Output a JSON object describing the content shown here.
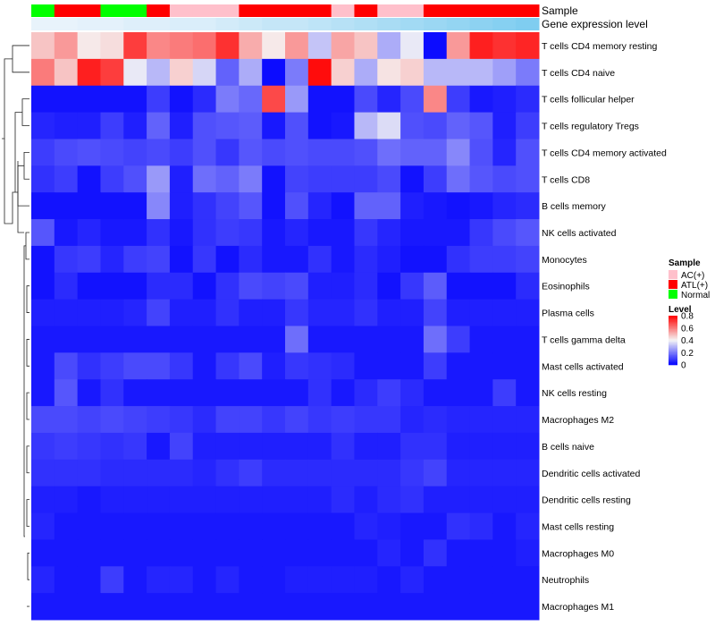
{
  "chart_data": {
    "type": "heatmap",
    "annotation_tracks": [
      {
        "name": "Sample",
        "values": [
          "Normal",
          "ATL(+)",
          "ATL(+)",
          "Normal",
          "Normal",
          "ATL(+)",
          "AC(+)",
          "AC(+)",
          "AC(+)",
          "ATL(+)",
          "ATL(+)",
          "ATL(+)",
          "ATL(+)",
          "AC(+)",
          "ATL(+)",
          "AC(+)",
          "AC(+)",
          "ATL(+)",
          "ATL(+)",
          "ATL(+)",
          "ATL(+)",
          "ATL(+)"
        ]
      },
      {
        "name": "Gene expression level",
        "values": [
          0.05,
          0.05,
          0.08,
          0.08,
          0.12,
          0.12,
          0.15,
          0.15,
          0.2,
          0.25,
          0.3,
          0.3,
          0.35,
          0.4,
          0.45,
          0.5,
          0.55,
          0.6,
          0.65,
          0.7,
          0.75,
          0.8
        ]
      }
    ],
    "row_labels": [
      "T cells CD4 memory resting",
      "T cells CD4 naive",
      "T cells follicular helper",
      "T cells regulatory  Tregs",
      "T cells CD4 memory activated",
      "T cells CD8",
      "B cells memory",
      "NK cells activated",
      "Monocytes",
      "Eosinophils",
      "Plasma cells",
      "T cells gamma delta",
      "Mast cells activated",
      "NK cells resting",
      "Macrophages M2",
      "B cells naive",
      "Dendritic cells activated",
      "Dendritic cells resting",
      "Mast cells resting",
      "Macrophages M0",
      "Neutrophils",
      "Macrophages M1"
    ],
    "values": [
      [
        0.48,
        0.55,
        0.42,
        0.44,
        0.7,
        0.58,
        0.6,
        0.62,
        0.72,
        0.52,
        0.42,
        0.55,
        0.32,
        0.53,
        0.48,
        0.28,
        0.38,
        0.02,
        0.55,
        0.75,
        0.72,
        0.74
      ],
      [
        0.6,
        0.48,
        0.75,
        0.7,
        0.38,
        0.3,
        0.46,
        0.35,
        0.16,
        0.28,
        0.02,
        0.2,
        0.78,
        0.46,
        0.28,
        0.43,
        0.46,
        0.3,
        0.3,
        0.3,
        0.26,
        0.2
      ],
      [
        0.03,
        0.03,
        0.03,
        0.03,
        0.03,
        0.1,
        0.03,
        0.07,
        0.2,
        0.17,
        0.68,
        0.25,
        0.03,
        0.03,
        0.12,
        0.06,
        0.12,
        0.58,
        0.1,
        0.04,
        0.05,
        0.07
      ],
      [
        0.06,
        0.05,
        0.05,
        0.1,
        0.05,
        0.16,
        0.05,
        0.13,
        0.14,
        0.15,
        0.04,
        0.13,
        0.03,
        0.04,
        0.3,
        0.36,
        0.13,
        0.12,
        0.16,
        0.14,
        0.05,
        0.1
      ],
      [
        0.1,
        0.12,
        0.13,
        0.12,
        0.11,
        0.12,
        0.1,
        0.13,
        0.09,
        0.14,
        0.12,
        0.13,
        0.12,
        0.12,
        0.13,
        0.18,
        0.16,
        0.16,
        0.22,
        0.13,
        0.06,
        0.13
      ],
      [
        0.08,
        0.1,
        0.03,
        0.1,
        0.13,
        0.25,
        0.05,
        0.18,
        0.16,
        0.2,
        0.03,
        0.11,
        0.1,
        0.1,
        0.1,
        0.12,
        0.03,
        0.1,
        0.18,
        0.14,
        0.12,
        0.13
      ],
      [
        0.03,
        0.03,
        0.03,
        0.03,
        0.03,
        0.22,
        0.05,
        0.08,
        0.11,
        0.14,
        0.03,
        0.13,
        0.06,
        0.03,
        0.16,
        0.16,
        0.05,
        0.04,
        0.03,
        0.04,
        0.06,
        0.07
      ],
      [
        0.14,
        0.04,
        0.06,
        0.04,
        0.04,
        0.08,
        0.04,
        0.08,
        0.1,
        0.09,
        0.04,
        0.06,
        0.04,
        0.04,
        0.09,
        0.06,
        0.04,
        0.04,
        0.04,
        0.09,
        0.12,
        0.14
      ],
      [
        0.03,
        0.09,
        0.1,
        0.06,
        0.1,
        0.11,
        0.03,
        0.09,
        0.03,
        0.07,
        0.04,
        0.04,
        0.08,
        0.04,
        0.07,
        0.05,
        0.03,
        0.03,
        0.08,
        0.1,
        0.1,
        0.11
      ],
      [
        0.03,
        0.07,
        0.03,
        0.03,
        0.03,
        0.07,
        0.07,
        0.03,
        0.08,
        0.12,
        0.11,
        0.12,
        0.05,
        0.05,
        0.07,
        0.03,
        0.09,
        0.15,
        0.03,
        0.03,
        0.03,
        0.07
      ],
      [
        0.05,
        0.05,
        0.05,
        0.05,
        0.06,
        0.11,
        0.05,
        0.05,
        0.08,
        0.05,
        0.05,
        0.09,
        0.06,
        0.06,
        0.08,
        0.05,
        0.05,
        0.11,
        0.05,
        0.05,
        0.05,
        0.05
      ],
      [
        0.04,
        0.04,
        0.04,
        0.04,
        0.04,
        0.04,
        0.04,
        0.04,
        0.04,
        0.04,
        0.04,
        0.18,
        0.04,
        0.04,
        0.04,
        0.04,
        0.04,
        0.18,
        0.1,
        0.04,
        0.04,
        0.04
      ],
      [
        0.04,
        0.12,
        0.08,
        0.1,
        0.12,
        0.12,
        0.09,
        0.04,
        0.09,
        0.12,
        0.05,
        0.09,
        0.08,
        0.07,
        0.04,
        0.04,
        0.04,
        0.1,
        0.04,
        0.04,
        0.04,
        0.04
      ],
      [
        0.04,
        0.14,
        0.04,
        0.08,
        0.04,
        0.04,
        0.04,
        0.04,
        0.04,
        0.04,
        0.04,
        0.04,
        0.08,
        0.04,
        0.07,
        0.1,
        0.07,
        0.04,
        0.04,
        0.04,
        0.1,
        0.04
      ],
      [
        0.12,
        0.12,
        0.11,
        0.12,
        0.11,
        0.1,
        0.09,
        0.07,
        0.11,
        0.11,
        0.09,
        0.11,
        0.09,
        0.1,
        0.09,
        0.09,
        0.06,
        0.07,
        0.06,
        0.06,
        0.06,
        0.06
      ],
      [
        0.09,
        0.1,
        0.09,
        0.08,
        0.09,
        0.04,
        0.11,
        0.05,
        0.05,
        0.05,
        0.05,
        0.05,
        0.05,
        0.08,
        0.05,
        0.05,
        0.08,
        0.08,
        0.05,
        0.05,
        0.05,
        0.05
      ],
      [
        0.08,
        0.08,
        0.08,
        0.07,
        0.07,
        0.07,
        0.07,
        0.06,
        0.08,
        0.1,
        0.07,
        0.07,
        0.07,
        0.07,
        0.07,
        0.07,
        0.09,
        0.11,
        0.06,
        0.06,
        0.06,
        0.06
      ],
      [
        0.05,
        0.05,
        0.04,
        0.05,
        0.05,
        0.05,
        0.05,
        0.05,
        0.05,
        0.05,
        0.05,
        0.05,
        0.05,
        0.07,
        0.05,
        0.07,
        0.08,
        0.05,
        0.05,
        0.05,
        0.05,
        0.05
      ],
      [
        0.06,
        0.04,
        0.04,
        0.04,
        0.04,
        0.04,
        0.04,
        0.04,
        0.04,
        0.04,
        0.04,
        0.04,
        0.04,
        0.04,
        0.06,
        0.05,
        0.04,
        0.04,
        0.08,
        0.07,
        0.04,
        0.06
      ],
      [
        0.04,
        0.04,
        0.04,
        0.04,
        0.04,
        0.04,
        0.04,
        0.04,
        0.04,
        0.04,
        0.04,
        0.04,
        0.04,
        0.04,
        0.04,
        0.06,
        0.04,
        0.08,
        0.04,
        0.04,
        0.04,
        0.05
      ],
      [
        0.06,
        0.04,
        0.04,
        0.1,
        0.04,
        0.06,
        0.06,
        0.04,
        0.06,
        0.04,
        0.04,
        0.05,
        0.05,
        0.05,
        0.05,
        0.04,
        0.06,
        0.04,
        0.04,
        0.04,
        0.04,
        0.04
      ],
      [
        0.04,
        0.04,
        0.04,
        0.04,
        0.04,
        0.04,
        0.04,
        0.04,
        0.04,
        0.04,
        0.04,
        0.04,
        0.04,
        0.04,
        0.04,
        0.04,
        0.04,
        0.04,
        0.04,
        0.04,
        0.04,
        0.04
      ]
    ],
    "color_scale": {
      "min": 0,
      "mid": 0.4,
      "max": 0.8,
      "low_color": "#0000ff",
      "mid_color": "#f5f5f5",
      "high_color": "#ff0000"
    },
    "legend": {
      "sample_title": "Sample",
      "sample_items": [
        {
          "label": "AC(+)",
          "color": "#ffc0cb"
        },
        {
          "label": "ATL(+)",
          "color": "#ff0000"
        },
        {
          "label": "Normal",
          "color": "#00ff00"
        }
      ],
      "level_title": "Level",
      "level_ticks": [
        "0.8",
        "0.6",
        "0.4",
        "0.2",
        "0"
      ],
      "level_tick_values": [
        0.8,
        0.6,
        0.4,
        0.2,
        0
      ]
    },
    "expression_color_low": "#e8f3fb",
    "expression_color_high": "#7fcdf0"
  }
}
